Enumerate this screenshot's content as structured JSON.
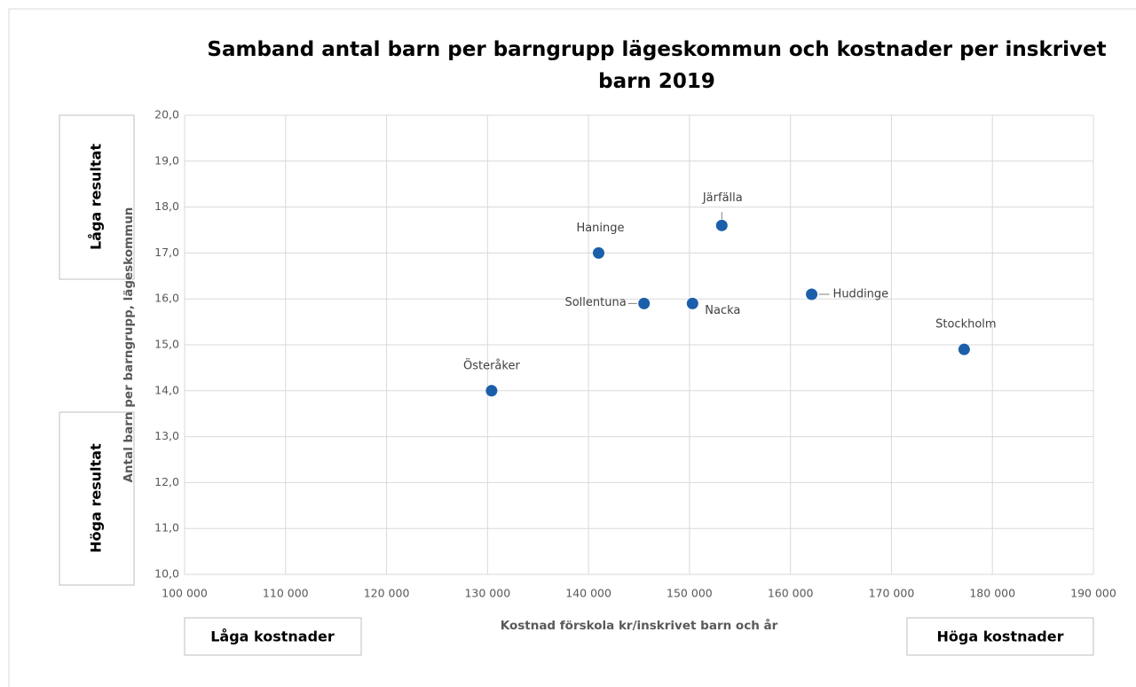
{
  "chart_data": {
    "type": "scatter",
    "title": "Samband antal barn per barngrupp lägeskommun och kostnader per inskrivet barn 2019",
    "x_label": "Kostnad förskola kr/inskrivet barn och år",
    "y_label": "Antal barn per barngrupp, lägeskommun",
    "annotations": [
      "Låga resultat",
      "Höga resultat",
      "Låga kostnader",
      "Höga kostnader"
    ],
    "series": [
      {
        "color": "#1b5faa",
        "labels": [
          "Österåker",
          "Haninge",
          "Järfälla",
          "Sollentuna",
          "Nacka",
          "Huddinge",
          "Stockholm"
        ],
        "x": [
          130400,
          141000,
          153200,
          145500,
          150300,
          162100,
          177200
        ],
        "values": [
          14.0,
          17.0,
          17.6,
          15.9,
          15.9,
          16.1,
          14.9
        ]
      }
    ],
    "xlim": [
      100000,
      190000
    ],
    "xticks": [
      {
        "value": 100000,
        "label": "100 000"
      },
      {
        "value": 110000,
        "label": "110 000"
      },
      {
        "value": 120000,
        "label": "120 000"
      },
      {
        "value": 130000,
        "label": "130 000"
      },
      {
        "value": 140000,
        "label": "140 000"
      },
      {
        "value": 150000,
        "label": "150 000"
      },
      {
        "value": 160000,
        "label": "160 000"
      },
      {
        "value": 170000,
        "label": "170 000"
      },
      {
        "value": 180000,
        "label": "180 000"
      },
      {
        "value": 190000,
        "label": "190 000"
      }
    ],
    "ylim": [
      10,
      20
    ],
    "yticks": [
      {
        "value": 10,
        "label": "10,0"
      },
      {
        "value": 11,
        "label": "11,0"
      },
      {
        "value": 12,
        "label": "12,0"
      },
      {
        "value": 13,
        "label": "13,0"
      },
      {
        "value": 14,
        "label": "14,0"
      },
      {
        "value": 15,
        "label": "15,0"
      },
      {
        "value": 16,
        "label": "16,0"
      },
      {
        "value": 17,
        "label": "17,0"
      },
      {
        "value": 18,
        "label": "18,0"
      },
      {
        "value": 19,
        "label": "19,0"
      },
      {
        "value": 20,
        "label": "20,0"
      }
    ],
    "grid": true
  }
}
